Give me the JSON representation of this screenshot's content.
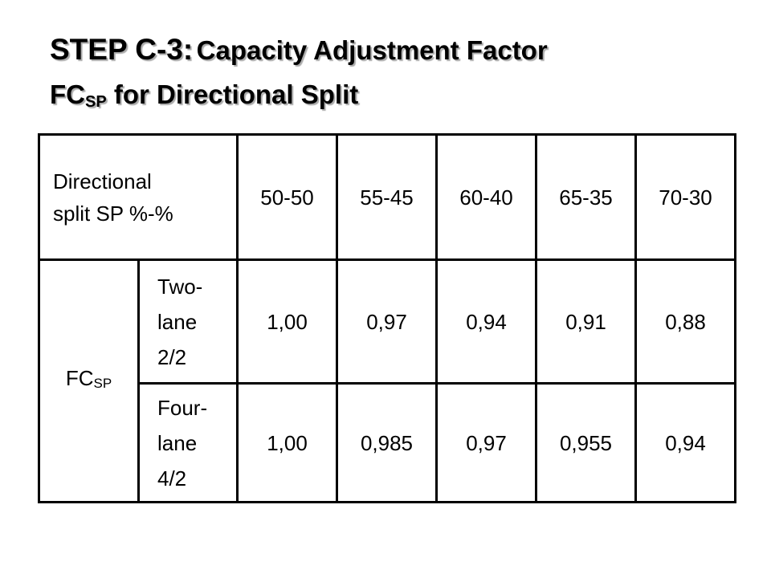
{
  "title": {
    "step": "STEP C-3:",
    "line1": "Capacity Adjustment Factor",
    "factor": "FC",
    "factor_sub": "SP",
    "line2": "for Directional Split"
  },
  "table": {
    "header": {
      "label": "Directional split SP %-%",
      "columns": [
        "50-50",
        "55-45",
        "60-40",
        "65-35",
        "70-30"
      ]
    },
    "row_group": {
      "label": "FC",
      "label_sub": "SP"
    },
    "rows": [
      {
        "label": "Two-lane 2/2",
        "values": [
          "1,00",
          "0,97",
          "0,94",
          "0,91",
          "0,88"
        ]
      },
      {
        "label": "Four-lane 4/2",
        "values": [
          "1,00",
          "0,985",
          "0,97",
          "0,955",
          "0,94"
        ]
      }
    ]
  }
}
